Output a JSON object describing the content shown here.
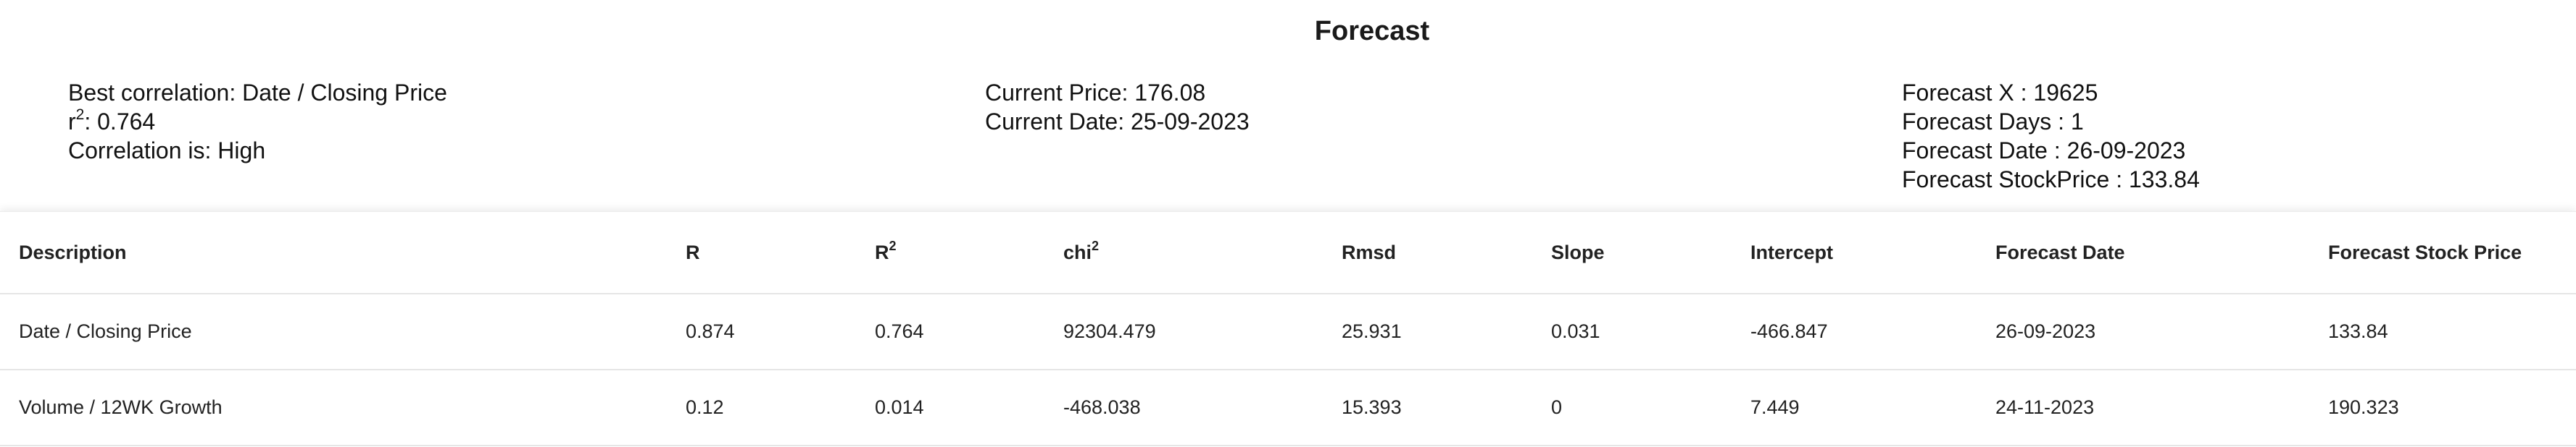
{
  "title": "Forecast",
  "summary": {
    "best_correlation": "Best correlation: Date / Closing Price",
    "r2_label": "r",
    "r2_sup": "2",
    "r2_value": ": 0.764",
    "correlation_strength": "Correlation is: High",
    "current_price": "Current Price: 176.08",
    "current_date": "Current Date: 25-09-2023",
    "forecast_x": "Forecast X : 19625",
    "forecast_days": "Forecast Days : 1",
    "forecast_date": "Forecast Date : 26-09-2023",
    "forecast_stock_price": "Forecast StockPrice : 133.84"
  },
  "table": {
    "headers": {
      "description": "Description",
      "r": "R",
      "r2_base": "R",
      "r2_sup": "2",
      "chi2_base": "chi",
      "chi2_sup": "2",
      "rmsd": "Rmsd",
      "slope": "Slope",
      "intercept": "Intercept",
      "forecast_date": "Forecast Date",
      "forecast_stock_price": "Forecast Stock Price"
    },
    "rows": [
      {
        "description": "Date / Closing Price",
        "r": "0.874",
        "r2": "0.764",
        "chi2": "92304.479",
        "rmsd": "25.931",
        "slope": "0.031",
        "intercept": "-466.847",
        "forecast_date": "26-09-2023",
        "forecast_stock_price": "133.84"
      },
      {
        "description": "Volume / 12WK Growth",
        "r": "0.12",
        "r2": "0.014",
        "chi2": "-468.038",
        "rmsd": "15.393",
        "slope": "0",
        "intercept": "7.449",
        "forecast_date": "24-11-2023",
        "forecast_stock_price": "190.323"
      }
    ]
  }
}
